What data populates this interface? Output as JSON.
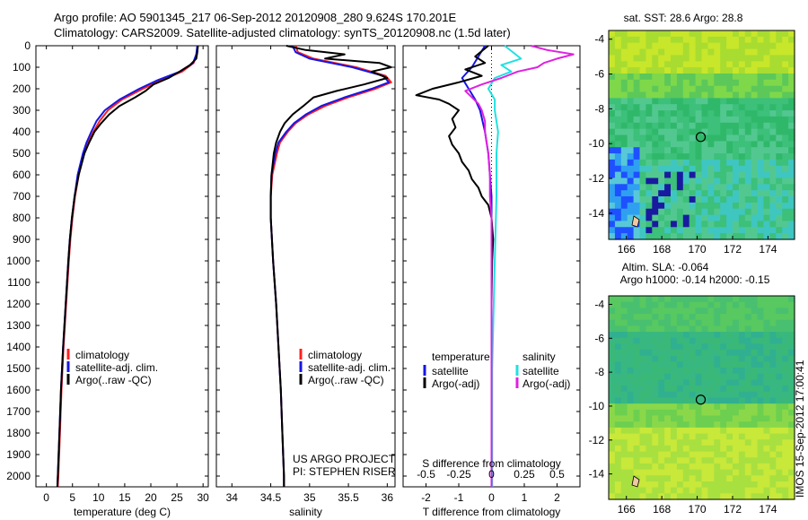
{
  "header": {
    "line1": "Argo profile: AO 5901345_217 06-Sep-2012 20120908_280 9.624S 170.201E",
    "line2": "Climatology: CARS2009. Satellite-adjusted climatology: synTS_20120908.nc (1.5d later)"
  },
  "colors": {
    "climatology": "#ff2020",
    "satellite": "#1515e6",
    "argo": "#000000",
    "sal_satellite": "#22e0e0",
    "sal_argo": "#e020e0"
  },
  "chart_data": [
    {
      "type": "line",
      "xlabel": "temperature (deg C)",
      "xlim": [
        -2,
        31
      ],
      "ylim": [
        2050,
        0
      ],
      "xticks": [
        "0",
        "5",
        "10",
        "15",
        "20",
        "25",
        "30"
      ],
      "yticks": [
        "0",
        "100",
        "200",
        "300",
        "400",
        "500",
        "600",
        "700",
        "800",
        "900",
        "1000",
        "1100",
        "1200",
        "1300",
        "1400",
        "1500",
        "1600",
        "1700",
        "1800",
        "1900",
        "2000"
      ],
      "legend": [
        "climatology",
        "satellite-adj. clim.",
        "Argo(..raw -QC)"
      ],
      "series": [
        {
          "name": "climatology",
          "depth": [
            0,
            40,
            80,
            120,
            160,
            200,
            250,
            300,
            350,
            400,
            450,
            500,
            600,
            700,
            800,
            900,
            1000,
            1200,
            1400,
            1600,
            1800,
            2000,
            2050
          ],
          "values": [
            29.0,
            28.8,
            28.2,
            26.0,
            22.0,
            18.5,
            14.5,
            11.8,
            10.2,
            9.0,
            8.0,
            7.2,
            6.2,
            5.5,
            5.0,
            4.6,
            4.3,
            3.8,
            3.3,
            2.9,
            2.6,
            2.3,
            2.2
          ]
        },
        {
          "name": "satellite-adj. clim.",
          "depth": [
            0,
            40,
            80,
            120,
            160,
            200,
            250,
            300,
            350,
            400,
            450,
            500,
            600,
            700,
            800,
            900,
            1000,
            1200,
            1400,
            1600,
            1800,
            2000,
            2050
          ],
          "values": [
            28.9,
            28.7,
            28.1,
            25.6,
            21.3,
            17.8,
            14.0,
            11.2,
            9.6,
            8.6,
            7.7,
            7.0,
            6.0,
            5.4,
            4.9,
            4.5,
            4.2,
            3.7,
            3.2,
            2.8,
            2.5,
            2.2,
            2.1
          ]
        },
        {
          "name": "Argo(..raw -QC)",
          "depth": [
            0,
            30,
            60,
            90,
            120,
            150,
            180,
            210,
            240,
            280,
            320,
            360,
            400,
            450,
            500,
            600,
            700,
            800,
            900,
            1000,
            1200,
            1400,
            1600,
            1800,
            2000,
            2050
          ],
          "values": [
            29.0,
            28.9,
            28.7,
            27.5,
            25.5,
            23.4,
            20.5,
            19.0,
            17.0,
            14.0,
            12.0,
            10.5,
            9.2,
            8.2,
            7.3,
            6.2,
            5.4,
            4.9,
            4.5,
            4.2,
            3.7,
            3.2,
            2.8,
            2.5,
            2.2,
            2.1
          ]
        }
      ]
    },
    {
      "type": "line",
      "xlabel": "salinity",
      "xlim": [
        33.8,
        36.1
      ],
      "ylim": [
        2050,
        0
      ],
      "xticks": [
        "34",
        "34.5",
        "35",
        "35.5",
        "36"
      ],
      "legend": [
        "climatology",
        "satellite-adj. clim.",
        "Argo(..raw -QC)"
      ],
      "annotation": [
        "US ARGO PROJECT",
        "PI: STEPHEN RISER"
      ],
      "series": [
        {
          "name": "climatology",
          "depth": [
            0,
            30,
            60,
            100,
            140,
            170,
            200,
            240,
            280,
            320,
            360,
            400,
            450,
            500,
            600,
            700,
            800,
            1000,
            1200,
            1400,
            1600,
            1800,
            2000,
            2050
          ],
          "values": [
            34.82,
            34.85,
            35.05,
            35.6,
            35.98,
            36.05,
            35.85,
            35.5,
            35.2,
            34.98,
            34.82,
            34.72,
            34.62,
            34.58,
            34.52,
            34.5,
            34.5,
            34.53,
            34.57,
            34.6,
            34.63,
            34.65,
            34.67,
            34.67
          ]
        },
        {
          "name": "satellite-adj. clim.",
          "depth": [
            0,
            30,
            60,
            100,
            140,
            170,
            200,
            240,
            280,
            320,
            360,
            400,
            450,
            500,
            600,
            700,
            800,
            1000,
            1200,
            1400,
            1600,
            1800,
            2000,
            2050
          ],
          "values": [
            34.78,
            34.82,
            35.0,
            35.55,
            35.95,
            36.02,
            35.8,
            35.45,
            35.15,
            34.95,
            34.8,
            34.7,
            34.6,
            34.56,
            34.51,
            34.5,
            34.5,
            34.53,
            34.57,
            34.6,
            34.63,
            34.65,
            34.67,
            34.67
          ]
        },
        {
          "name": "Argo(..raw -QC)",
          "depth": [
            0,
            20,
            40,
            60,
            80,
            100,
            120,
            150,
            180,
            210,
            240,
            280,
            320,
            360,
            400,
            450,
            500,
            600,
            700,
            800,
            1000,
            1200,
            1400,
            1600,
            1800,
            2000,
            2050
          ],
          "values": [
            34.7,
            34.95,
            35.45,
            35.2,
            35.9,
            36.05,
            35.8,
            36.0,
            35.7,
            35.35,
            35.05,
            34.92,
            34.78,
            34.68,
            34.62,
            34.57,
            34.54,
            34.51,
            34.5,
            34.5,
            34.53,
            34.57,
            34.6,
            34.63,
            34.65,
            34.67,
            34.67
          ]
        }
      ]
    },
    {
      "type": "line",
      "xlabel": "T difference from climatology",
      "x2label": "S difference from climatology",
      "xlim": [
        -2.7,
        2.7
      ],
      "ylim": [
        2050,
        0
      ],
      "xticks": [
        "-2",
        "-1",
        "0",
        "1",
        "2"
      ],
      "x2ticks": [
        "-0.5",
        "-0.25",
        "0",
        "0.25",
        "0.5"
      ],
      "legend_left": {
        "title": "temperature",
        "items": [
          "satellite",
          "Argo(-adj)"
        ]
      },
      "legend_right": {
        "title": "salinity",
        "items": [
          "satellite",
          "Argo(-adj)"
        ]
      },
      "series": [
        {
          "name": "satellite",
          "depth": [
            0,
            50,
            100,
            150,
            200,
            250,
            300,
            400,
            500,
            700,
            1000,
            1500,
            2000,
            2050
          ],
          "values": [
            -0.2,
            -0.4,
            -0.6,
            -0.9,
            -0.7,
            -0.5,
            -0.35,
            -0.2,
            -0.1,
            0,
            0,
            0,
            0,
            0
          ]
        },
        {
          "name": "Argo(-adj)",
          "depth": [
            0,
            50,
            80,
            110,
            140,
            170,
            200,
            230,
            250,
            270,
            300,
            340,
            380,
            420,
            460,
            500,
            540,
            580,
            620,
            660,
            700,
            740,
            800,
            900,
            1000,
            1200,
            1500,
            2000,
            2050
          ],
          "values": [
            -0.1,
            -0.5,
            -0.2,
            -0.8,
            -0.3,
            -1.0,
            -1.8,
            -2.3,
            -1.6,
            -1.3,
            -1.0,
            -1.2,
            -1.1,
            -1.3,
            -1.2,
            -1.0,
            -0.9,
            -0.7,
            -0.6,
            -0.4,
            -0.3,
            -0.1,
            0,
            0.05,
            0.02,
            0,
            0,
            0,
            0
          ]
        },
        {
          "name": "satellite",
          "depth": [
            0,
            60,
            90,
            120,
            150,
            200,
            250,
            300,
            400,
            500,
            700,
            1000,
            1500,
            2000,
            2050
          ],
          "values": [
            0.4,
            0.9,
            0.3,
            0.6,
            0.1,
            -0.1,
            0.1,
            0.1,
            0.2,
            0.15,
            0.15,
            0.1,
            0.02,
            0.02,
            0.02
          ]
        },
        {
          "name": "Argo(-adj)",
          "depth": [
            0,
            20,
            40,
            60,
            80,
            100,
            120,
            150,
            180,
            210,
            240,
            270,
            300,
            350,
            400,
            450,
            500,
            600,
            700,
            800,
            1000,
            1500,
            2000,
            2050
          ],
          "values": [
            1.2,
            1.7,
            2.5,
            2.0,
            1.6,
            1.4,
            0.8,
            0.3,
            -0.3,
            -0.8,
            -0.6,
            -0.4,
            -0.3,
            -0.2,
            -0.2,
            -0.15,
            -0.1,
            -0.05,
            -0.05,
            0,
            0,
            0,
            0,
            0
          ]
        }
      ]
    },
    {
      "type": "heatmap",
      "title": "sat. SST: 28.6 Argo: 28.8",
      "xticks": [
        "166",
        "168",
        "170",
        "172",
        "174"
      ],
      "yticks": [
        "-4",
        "-6",
        "-8",
        "-10",
        "-12",
        "-14"
      ],
      "xlim": [
        165,
        175.5
      ],
      "ylim": [
        -15.5,
        -3.5
      ],
      "marker": {
        "lon": 170.2,
        "lat": -9.62
      }
    },
    {
      "type": "heatmap",
      "title": "Altim. SLA: -0.064",
      "subtitle": "Argo h1000: -0.14 h2000: -0.15",
      "xticks": [
        "166",
        "168",
        "170",
        "172",
        "174"
      ],
      "yticks": [
        "-4",
        "-6",
        "-8",
        "-10",
        "-12",
        "-14"
      ],
      "xlim": [
        165,
        175.5
      ],
      "ylim": [
        -15.5,
        -3.5
      ],
      "marker": {
        "lon": 170.2,
        "lat": -9.62
      },
      "side_label": "IMOS 15-Sep-2012 17:00:41"
    }
  ]
}
